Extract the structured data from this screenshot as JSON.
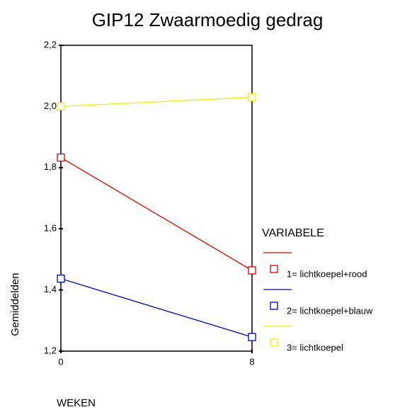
{
  "chart_data": {
    "type": "line",
    "title": "GIP12 Zwaarmoedig gedrag",
    "x": [
      0,
      8
    ],
    "series": [
      {
        "name": "1= lichtkoepel+rood",
        "color": "#e00000",
        "values": [
          1.833,
          1.464
        ]
      },
      {
        "name": "2= lichtkoepel+blauw",
        "color": "#0000cc",
        "values": [
          1.437,
          1.246
        ]
      },
      {
        "name": "3= lichtkoepel",
        "color": "#f0f000",
        "values": [
          2.0,
          2.03
        ]
      }
    ],
    "xlim": [
      0,
      8
    ],
    "xticks": [
      0,
      8
    ],
    "ylim": [
      1.2,
      2.2
    ],
    "yticks": [
      {
        "value": 1.2,
        "label": "1,2"
      },
      {
        "value": 1.4,
        "label": "1,4"
      },
      {
        "value": 1.6,
        "label": "1,6"
      },
      {
        "value": 1.8,
        "label": "1,8"
      },
      {
        "value": 2.0,
        "label": "2,0"
      },
      {
        "value": 2.2,
        "label": "2,2"
      }
    ],
    "x_label": "WEKEN",
    "y_label": "Gemiddelden",
    "legend_title": "VARIABELE"
  }
}
